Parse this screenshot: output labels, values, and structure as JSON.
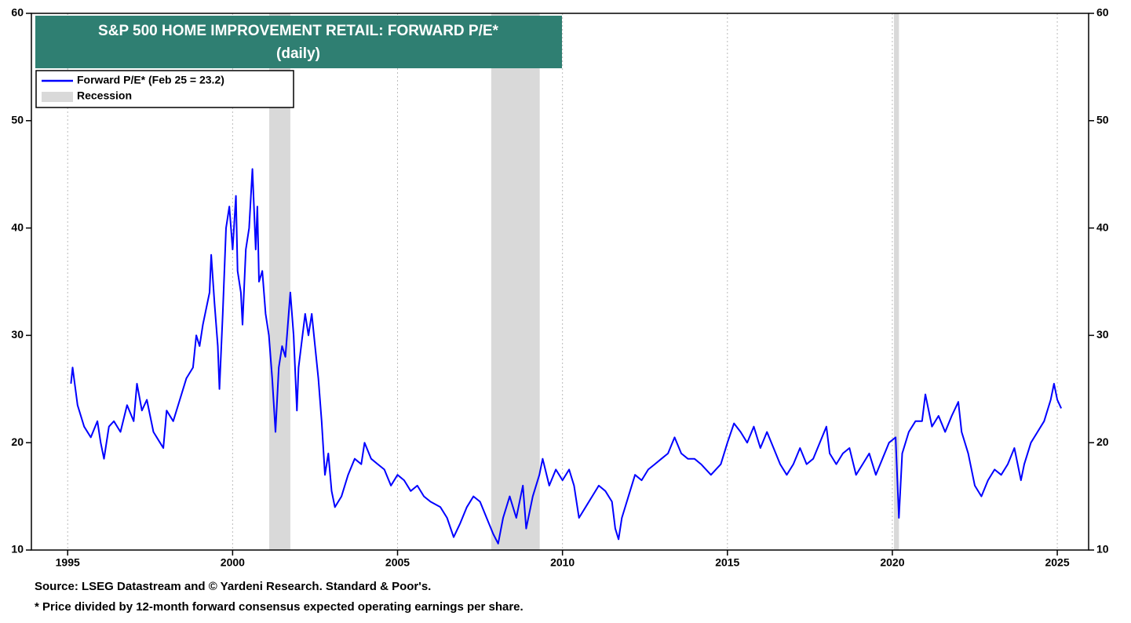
{
  "chart_data": {
    "type": "line",
    "title": "S&P 500 HOME IMPROVEMENT RETAIL: FORWARD P/E*",
    "subtitle": "(daily)",
    "x": [
      1995.1,
      1995.15,
      1995.3,
      1995.5,
      1995.7,
      1995.9,
      1996.0,
      1996.1,
      1996.25,
      1996.4,
      1996.6,
      1996.8,
      1997.0,
      1997.1,
      1997.25,
      1997.4,
      1997.6,
      1997.8,
      1997.9,
      1998.0,
      1998.2,
      1998.4,
      1998.6,
      1998.8,
      1998.9,
      1999.0,
      1999.1,
      1999.3,
      1999.35,
      1999.45,
      1999.55,
      1999.6,
      1999.7,
      1999.8,
      1999.9,
      2000.0,
      2000.1,
      2000.15,
      2000.25,
      2000.3,
      2000.4,
      2000.5,
      2000.6,
      2000.7,
      2000.75,
      2000.8,
      2000.9,
      2001.0,
      2001.1,
      2001.2,
      2001.3,
      2001.4,
      2001.5,
      2001.6,
      2001.75,
      2001.85,
      2001.95,
      2002.0,
      2002.2,
      2002.3,
      2002.4,
      2002.5,
      2002.6,
      2002.7,
      2002.8,
      2002.9,
      2003.0,
      2003.1,
      2003.3,
      2003.5,
      2003.7,
      2003.9,
      2004.0,
      2004.2,
      2004.4,
      2004.6,
      2004.8,
      2005.0,
      2005.2,
      2005.4,
      2005.6,
      2005.8,
      2006.0,
      2006.3,
      2006.5,
      2006.7,
      2006.9,
      2007.1,
      2007.3,
      2007.5,
      2007.7,
      2007.9,
      2008.05,
      2008.2,
      2008.4,
      2008.6,
      2008.8,
      2008.9,
      2009.1,
      2009.3,
      2009.4,
      2009.6,
      2009.8,
      2010.0,
      2010.2,
      2010.35,
      2010.5,
      2010.7,
      2010.9,
      2011.1,
      2011.3,
      2011.5,
      2011.6,
      2011.7,
      2011.8,
      2012.0,
      2012.2,
      2012.4,
      2012.6,
      2012.8,
      2013.0,
      2013.2,
      2013.4,
      2013.6,
      2013.8,
      2014.0,
      2014.2,
      2014.5,
      2014.8,
      2015.0,
      2015.2,
      2015.4,
      2015.6,
      2015.8,
      2016.0,
      2016.2,
      2016.4,
      2016.6,
      2016.8,
      2017.0,
      2017.2,
      2017.4,
      2017.6,
      2017.8,
      2018.0,
      2018.1,
      2018.3,
      2018.5,
      2018.7,
      2018.9,
      2019.1,
      2019.3,
      2019.5,
      2019.7,
      2019.9,
      2020.1,
      2020.2,
      2020.3,
      2020.5,
      2020.7,
      2020.9,
      2021.0,
      2021.2,
      2021.4,
      2021.6,
      2021.8,
      2022.0,
      2022.1,
      2022.3,
      2022.5,
      2022.7,
      2022.9,
      2023.1,
      2023.3,
      2023.5,
      2023.7,
      2023.9,
      2024.0,
      2024.2,
      2024.4,
      2024.6,
      2024.8,
      2024.9,
      2025.0,
      2025.12
    ],
    "series": [
      {
        "name": "Forward P/E* (Feb 25 = 23.2)",
        "color": "#0000ff",
        "values": [
          25.5,
          27,
          23.5,
          21.5,
          20.5,
          22,
          20,
          18.5,
          21.5,
          22,
          21,
          23.5,
          22,
          25.5,
          23,
          24,
          21,
          20,
          19.5,
          23,
          22,
          24,
          26,
          27,
          30,
          29,
          31,
          34,
          37.5,
          33,
          29,
          25,
          32,
          40,
          42,
          38,
          43,
          36,
          34,
          31,
          38,
          40,
          45.5,
          38,
          42,
          35,
          36,
          32,
          30,
          26,
          21,
          27,
          29,
          28,
          34,
          30,
          23,
          27,
          32,
          30,
          32,
          29,
          26,
          22,
          17,
          19,
          15.5,
          14,
          15,
          17,
          18.5,
          18,
          20,
          18.5,
          18,
          17.5,
          16,
          17,
          16.5,
          15.5,
          16,
          15,
          14.5,
          14,
          13,
          11.2,
          12.5,
          14,
          15,
          14.5,
          13,
          11.5,
          10.6,
          13,
          15,
          13,
          16,
          12,
          15,
          17,
          18.5,
          16,
          17.5,
          16.5,
          17.5,
          16,
          13,
          14,
          15,
          16,
          15.5,
          14.5,
          12,
          11,
          13,
          15,
          17,
          16.5,
          17.5,
          18,
          18.5,
          19,
          20.5,
          19,
          18.5,
          18.5,
          18,
          17,
          18,
          20,
          21.8,
          21,
          20,
          21.5,
          19.5,
          21,
          19.5,
          18,
          17,
          18,
          19.5,
          18,
          18.5,
          20,
          21.5,
          19,
          18,
          19,
          19.5,
          17,
          18,
          19,
          17,
          18.5,
          20,
          20.5,
          13,
          19,
          21,
          22,
          22,
          24.5,
          21.5,
          22.5,
          21,
          22.5,
          23.8,
          21,
          19,
          16,
          15,
          16.5,
          17.5,
          17,
          18,
          19.5,
          16.5,
          18,
          20,
          21,
          22,
          24,
          25.5,
          24,
          23.2
        ]
      }
    ],
    "recession": {
      "name": "Recession",
      "color": "#d9d9d9",
      "spans": [
        [
          2001.11,
          2001.75
        ],
        [
          2007.84,
          2009.31
        ],
        [
          2020.05,
          2020.2
        ]
      ]
    },
    "xlim": [
      1993.9,
      2025.95
    ],
    "xticks": [
      1995,
      2000,
      2005,
      2010,
      2015,
      2020,
      2025
    ],
    "ylim": [
      10,
      60
    ],
    "yticks": [
      10,
      20,
      30,
      40,
      50,
      60
    ],
    "grid": "x",
    "source": "Source: LSEG Datastream and © Yardeni Research. Standard & Poor's.",
    "note": "* Price divided by 12-month forward consensus expected operating earnings per share."
  }
}
